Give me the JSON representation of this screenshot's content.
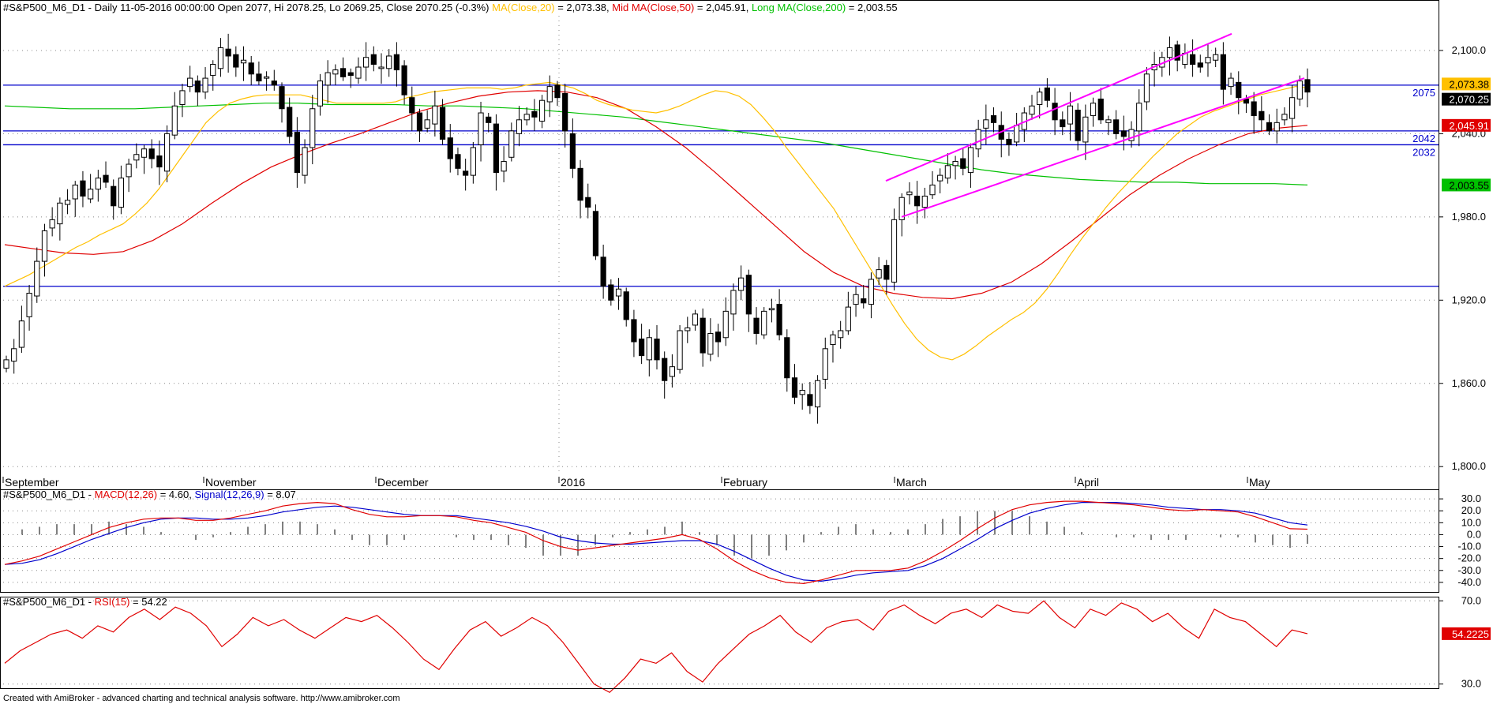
{
  "colors": {
    "ma20": "#ffc000",
    "ma50": "#e00000",
    "ma200": "#00c000",
    "hline": "#0000cc",
    "channel": "#ff00ff",
    "macd": "#e00000",
    "signal": "#0000cc",
    "rsi": "#e00000",
    "price_badge": "#000000"
  },
  "main": {
    "header_prefix": "#S&P500_M6_D1 - Daily 11-05-2016 00:00:00 Open 2077, Hi 2078.25, Lo 2069.25, Close 2070.25 (-0.3%)",
    "ma20_label": "MA(Close,20)",
    "ma20_value": " = 2,073.38, ",
    "ma50_label": "Mid MA(Close,50)",
    "ma50_value": " = 2,045.91, ",
    "ma200_label": "Long MA(Close,200)",
    "ma200_value": " = 2,003.55",
    "hline_labels": [
      "2075",
      "2042",
      "2032"
    ],
    "badges": {
      "ma20": "2,073.38",
      "close": "2,070.25",
      "ma50": "2,045.91",
      "ma200": "2,003.55"
    }
  },
  "macd": {
    "header_prefix": "#S&P500_M6_D1 - ",
    "macd_label": "MACD(12,26)",
    "macd_value": " = 4.60, ",
    "signal_label": "Signal(12,26,9)",
    "signal_value": " = 8.07"
  },
  "rsi": {
    "header_prefix": "#S&P500_M6_D1 - ",
    "rsi_label": "RSI(15)",
    "rsi_value": " = 54.22",
    "badge": "54.2225"
  },
  "footer": "Created with AmiBroker - advanced charting and technical analysis software. http://www.amibroker.com",
  "chart_data": [
    {
      "type": "candlestick",
      "x_labels": [
        "September",
        "November",
        "December",
        "2016",
        "February",
        "March",
        "April",
        "May"
      ],
      "y_ticks": [
        1800,
        1860,
        1920,
        1980,
        2040,
        2100
      ],
      "y_tick_labels": [
        "1,800.0",
        "1,860.0",
        "1,920.0",
        "1,980.0",
        "2,040.0",
        "2,100.0"
      ],
      "ylim": [
        1795,
        2125
      ],
      "horizontal_lines": [
        2075,
        2042,
        2032,
        1930
      ],
      "close_series": [
        1877,
        1885,
        1905,
        1925,
        1948,
        1970,
        1978,
        1990,
        1992,
        2003,
        1995,
        2000,
        2008,
        2005,
        1988,
        2008,
        2018,
        2025,
        2029,
        2022,
        2016,
        2040,
        2060,
        2071,
        2080,
        2070,
        2080,
        2090,
        2102,
        2096,
        2088,
        2093,
        2083,
        2078,
        2081,
        2075,
        2058,
        2038,
        2012,
        2030,
        2058,
        2078,
        2084,
        2086,
        2081,
        2082,
        2088,
        2095,
        2090,
        2088,
        2096,
        2086,
        2068,
        2055,
        2042,
        2050,
        2060,
        2036,
        2022,
        2015,
        2010,
        2030,
        2055,
        2048,
        2012,
        2020,
        2042,
        2050,
        2054,
        2052,
        2064,
        2074,
        2066,
        2042,
        2015,
        1992,
        1987,
        1952,
        1930,
        1920,
        1928,
        1906,
        1890,
        1880,
        1893,
        1877,
        1862,
        1872,
        1898,
        1900,
        1910,
        1882,
        1896,
        1890,
        1912,
        1927,
        1936,
        1910,
        1896,
        1912,
        1914,
        1895,
        1864,
        1850,
        1855,
        1844,
        1862,
        1885,
        1895,
        1898,
        1915,
        1924,
        1918,
        1935,
        1942,
        1935,
        1978,
        1994,
        1998,
        1988,
        1995,
        2003,
        2010,
        2017,
        2020,
        2015,
        2030,
        2043,
        2050,
        2048,
        2036,
        2032,
        2046,
        2055,
        2060,
        2070,
        2064,
        2050,
        2045,
        2060,
        2035,
        2052,
        2062,
        2050,
        2050,
        2040,
        2038,
        2043,
        2062,
        2083,
        2090,
        2095,
        2102,
        2093,
        2098,
        2090,
        2088,
        2095,
        2097,
        2072,
        2080,
        2066,
        2062,
        2053,
        2050,
        2042,
        2048,
        2054,
        2066,
        2078,
        2070
      ],
      "ma20_series": [
        1930,
        1934,
        1938,
        1943,
        1948,
        1953,
        1958,
        1962,
        1967,
        1971,
        1975,
        1982,
        1990,
        2000,
        2012,
        2024,
        2036,
        2048,
        2056,
        2062,
        2065,
        2067,
        2068,
        2068,
        2068,
        2068,
        2066,
        2064,
        2062,
        2062,
        2062,
        2062,
        2062,
        2063,
        2066,
        2068,
        2070,
        2071,
        2072,
        2073,
        2073,
        2073,
        2072,
        2073,
        2075,
        2076,
        2077,
        2075,
        2073,
        2069,
        2064,
        2061,
        2059,
        2057,
        2056,
        2055,
        2057,
        2060,
        2064,
        2068,
        2071,
        2070,
        2067,
        2061,
        2052,
        2042,
        2030,
        2019,
        2008,
        1997,
        1986,
        1972,
        1958,
        1944,
        1930,
        1916,
        1903,
        1892,
        1884,
        1879,
        1877,
        1881,
        1887,
        1894,
        1900,
        1906,
        1911,
        1918,
        1928,
        1940,
        1953,
        1965,
        1976,
        1987,
        1997,
        2006,
        2015,
        2024,
        2032,
        2040,
        2046,
        2052,
        2056,
        2059,
        2062,
        2065,
        2068,
        2070,
        2072,
        2074,
        2073
      ],
      "ma50_series": [
        1960,
        1957,
        1954,
        1953,
        1955,
        1963,
        1975,
        1990,
        2004,
        2016,
        2025,
        2033,
        2040,
        2048,
        2056,
        2062,
        2067,
        2070,
        2071,
        2070,
        2066,
        2058,
        2045,
        2030,
        2012,
        1993,
        1974,
        1955,
        1940,
        1930,
        1925,
        1922,
        1921,
        1925,
        1933,
        1946,
        1962,
        1979,
        1996,
        2010,
        2022,
        2032,
        2040,
        2044,
        2046
      ],
      "ma200_series": [
        2060,
        2059,
        2058,
        2058,
        2058,
        2059,
        2060,
        2061,
        2062,
        2062,
        2061,
        2061,
        2061,
        2060,
        2060,
        2059,
        2058,
        2056,
        2054,
        2052,
        2049,
        2046,
        2043,
        2040,
        2037,
        2034,
        2030,
        2026,
        2022,
        2018,
        2014,
        2011,
        2009,
        2007,
        2006,
        2005,
        2005,
        2004,
        2004,
        2004,
        2003
      ]
    },
    {
      "type": "line",
      "name": "MACD",
      "y_ticks": [
        30,
        20,
        10,
        0,
        -10,
        -20,
        -30,
        -40
      ],
      "y_tick_labels": [
        "30.0",
        "20.0",
        "10.0",
        "0.0",
        "-10.0",
        "-20.0",
        "-30.0",
        "-40.0"
      ],
      "ylim": [
        -48,
        38
      ],
      "macd_series": [
        -25,
        -22,
        -18,
        -12,
        -6,
        0,
        6,
        10,
        13,
        14,
        14,
        12,
        12,
        14,
        17,
        20,
        24,
        26,
        27,
        26,
        21,
        17,
        15,
        15,
        16,
        16,
        15,
        12,
        10,
        6,
        2,
        -5,
        -10,
        -13,
        -11,
        -9,
        -7,
        -5,
        -3,
        0,
        -4,
        -12,
        -22,
        -30,
        -36,
        -40,
        -41,
        -38,
        -34,
        -30,
        -30,
        -30,
        -28,
        -22,
        -14,
        -5,
        5,
        14,
        21,
        25,
        27,
        28,
        28,
        27,
        26,
        25,
        23,
        21,
        20,
        21,
        20,
        19,
        15,
        10,
        5,
        4.6
      ],
      "signal_series": [
        -25,
        -24,
        -21,
        -16,
        -10,
        -4,
        1,
        6,
        10,
        13,
        14,
        14,
        13,
        13,
        14,
        16,
        19,
        21,
        23,
        24,
        23,
        21,
        19,
        17,
        16,
        16,
        16,
        14,
        12,
        10,
        7,
        3,
        -2,
        -5,
        -7,
        -8,
        -8,
        -7,
        -6,
        -5,
        -5,
        -8,
        -14,
        -21,
        -28,
        -34,
        -38,
        -39,
        -37,
        -34,
        -32,
        -31,
        -30,
        -26,
        -20,
        -12,
        -4,
        5,
        12,
        18,
        22,
        25,
        27,
        27,
        27,
        26,
        25,
        23,
        22,
        21,
        21,
        20,
        18,
        14,
        10,
        8.07
      ]
    },
    {
      "type": "line",
      "name": "RSI",
      "y_ticks": [
        70,
        30
      ],
      "y_tick_labels": [
        "70.0",
        "30.0"
      ],
      "ylim": [
        28,
        72
      ],
      "rsi_series": [
        40,
        46,
        50,
        54,
        56,
        52,
        58,
        55,
        62,
        66,
        61,
        67,
        64,
        58,
        48,
        54,
        62,
        58,
        61,
        56,
        52,
        57,
        62,
        60,
        63,
        57,
        50,
        42,
        37,
        47,
        56,
        60,
        53,
        57,
        62,
        58,
        50,
        40,
        30,
        26,
        33,
        42,
        40,
        45,
        36,
        31,
        40,
        47,
        54,
        58,
        63,
        55,
        50,
        57,
        60,
        61,
        56,
        65,
        68,
        63,
        59,
        64,
        66,
        62,
        68,
        65,
        64,
        70,
        62,
        57,
        66,
        63,
        69,
        66,
        60,
        64,
        57,
        52,
        66,
        62,
        60,
        54,
        48,
        56,
        54.22
      ]
    }
  ]
}
